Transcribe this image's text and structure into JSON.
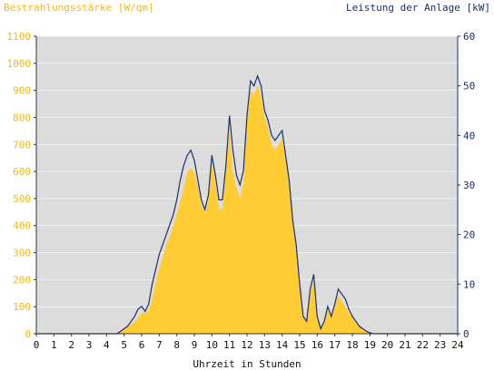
{
  "chart_data": {
    "type": "area",
    "title": "",
    "ylabel_left": "Bestrahlungsstärke [W/qm]",
    "ylabel_right": "Leistung der Anlage [kW]",
    "xlabel": "Uhrzeit in Stunden",
    "xlim": [
      0,
      24
    ],
    "ylim_left": [
      0,
      1100
    ],
    "ylim_right": [
      0,
      60
    ],
    "x_ticks": [
      "0",
      "1",
      "2",
      "3",
      "4",
      "5",
      "6",
      "7",
      "8",
      "9",
      "10",
      "11",
      "12",
      "13",
      "14",
      "15",
      "16",
      "17",
      "18",
      "19",
      "20",
      "21",
      "22",
      "23",
      "24"
    ],
    "y_ticks_left": [
      "0",
      "100",
      "200",
      "300",
      "400",
      "500",
      "600",
      "700",
      "800",
      "900",
      "1000",
      "1100"
    ],
    "y_ticks_right": [
      "0",
      "10",
      "20",
      "30",
      "40",
      "50",
      "60"
    ],
    "grid": true,
    "colors": {
      "plot_bg": "#dcdcdc",
      "irradiance": "#ffcc33",
      "power": "#1a2f6e",
      "grid": "#ffffff",
      "left_axis_text": "#f2b818",
      "right_axis_text": "#1a2f6e"
    },
    "series": [
      {
        "name": "Bestrahlungsstärke [W/qm]",
        "axis": "left",
        "kind": "area",
        "x": [
          0,
          4.6,
          4.8,
          5.0,
          5.2,
          5.4,
          5.6,
          5.8,
          6.0,
          6.2,
          6.4,
          6.6,
          6.8,
          7.0,
          7.2,
          7.4,
          7.6,
          7.8,
          8.0,
          8.2,
          8.4,
          8.6,
          8.8,
          9.0,
          9.2,
          9.4,
          9.6,
          9.8,
          10.0,
          10.2,
          10.4,
          10.6,
          10.8,
          11.0,
          11.2,
          11.4,
          11.6,
          11.8,
          12.0,
          12.2,
          12.4,
          12.6,
          12.8,
          13.0,
          13.2,
          13.4,
          13.6,
          13.8,
          14.0,
          14.2,
          14.4,
          14.6,
          14.8,
          15.0,
          15.2,
          15.4,
          15.6,
          15.8,
          16.0,
          16.2,
          16.4,
          16.6,
          16.8,
          17.0,
          17.2,
          17.4,
          17.6,
          17.8,
          18.0,
          18.2,
          18.4,
          18.6,
          18.8,
          19.0,
          19.2,
          19.4,
          19.6,
          19.8,
          20.0,
          24
        ],
        "values": [
          0,
          0,
          5,
          15,
          25,
          35,
          45,
          60,
          80,
          75,
          85,
          130,
          190,
          240,
          280,
          330,
          360,
          400,
          440,
          490,
          540,
          600,
          610,
          600,
          540,
          480,
          440,
          500,
          640,
          560,
          460,
          460,
          600,
          760,
          600,
          540,
          500,
          560,
          780,
          900,
          880,
          920,
          880,
          800,
          760,
          700,
          680,
          700,
          720,
          640,
          560,
          420,
          320,
          180,
          60,
          40,
          150,
          200,
          60,
          20,
          40,
          90,
          60,
          100,
          140,
          120,
          100,
          80,
          60,
          40,
          30,
          20,
          10,
          5,
          2,
          0,
          0,
          0,
          0,
          0
        ]
      },
      {
        "name": "Leistung der Anlage [kW]",
        "axis": "right",
        "kind": "line",
        "x": [
          0,
          4.6,
          4.8,
          5.0,
          5.2,
          5.4,
          5.6,
          5.8,
          6.0,
          6.2,
          6.4,
          6.6,
          6.8,
          7.0,
          7.2,
          7.4,
          7.6,
          7.8,
          8.0,
          8.2,
          8.4,
          8.6,
          8.8,
          9.0,
          9.2,
          9.4,
          9.6,
          9.8,
          10.0,
          10.2,
          10.4,
          10.6,
          10.8,
          11.0,
          11.2,
          11.4,
          11.6,
          11.8,
          12.0,
          12.2,
          12.4,
          12.6,
          12.8,
          13.0,
          13.2,
          13.4,
          13.6,
          13.8,
          14.0,
          14.2,
          14.4,
          14.6,
          14.8,
          15.0,
          15.2,
          15.4,
          15.6,
          15.8,
          16.0,
          16.2,
          16.4,
          16.6,
          16.8,
          17.0,
          17.2,
          17.4,
          17.6,
          17.8,
          18.0,
          18.2,
          18.4,
          18.6,
          18.8,
          19.0,
          19.2,
          19.4,
          19.6,
          19.8,
          20.0,
          24
        ],
        "values": [
          0,
          0,
          0.5,
          1,
          1.5,
          2.5,
          3.5,
          5,
          5.5,
          4.5,
          6,
          10,
          13,
          16,
          18,
          20,
          22,
          24,
          27,
          31,
          34,
          36,
          37,
          35,
          31,
          27,
          25,
          28,
          36,
          32,
          27,
          27,
          34,
          44,
          37,
          32,
          30,
          33,
          44,
          51,
          50,
          52,
          50,
          45,
          43,
          40,
          39,
          40,
          41,
          36,
          31,
          23,
          18,
          10,
          3.5,
          2.5,
          9,
          12,
          3.5,
          1,
          2.5,
          5.5,
          3.5,
          6,
          9,
          8,
          7,
          5,
          3.5,
          2.5,
          1.5,
          1,
          0.5,
          0.2,
          0,
          0,
          0,
          0,
          0,
          0
        ]
      }
    ]
  }
}
